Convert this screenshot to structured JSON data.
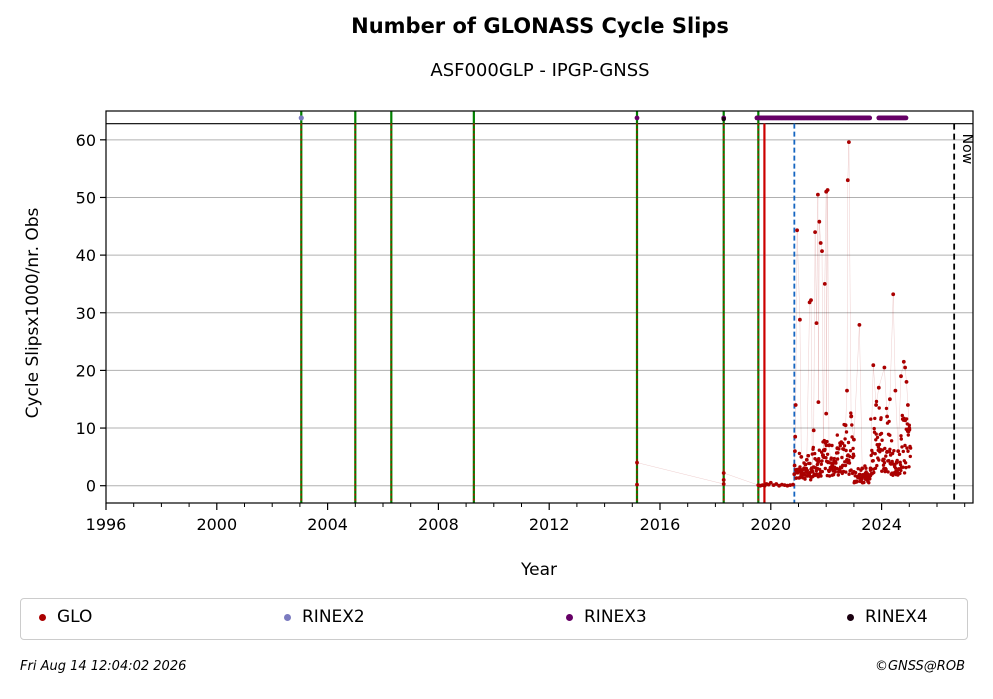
{
  "title": "Number of GLONASS Cycle Slips",
  "subtitle": "ASF000GLP - IPGP-GNSS",
  "footer": {
    "date": "Fri Aug 14 12:04:02 2026",
    "credit": "©GNSS@ROB"
  },
  "colors": {
    "glo": "#aa0000",
    "rinex2": "#7b7bc0",
    "rinex3": "#660066",
    "rinex4": "#1a0010",
    "green_line": "#008000",
    "red_line": "#cc0000",
    "blue_line": "#1565c0",
    "grid": "#b0b0b0"
  },
  "legend": [
    {
      "label": "GLO",
      "color": "#aa0000"
    },
    {
      "label": "RINEX2",
      "color": "#7b7bc0"
    },
    {
      "label": "RINEX3",
      "color": "#660066"
    },
    {
      "label": "RINEX4",
      "color": "#1a0010"
    }
  ],
  "chart_data": {
    "type": "scatter",
    "title": "Number of GLONASS Cycle Slips",
    "subtitle": "ASF000GLP - IPGP-GNSS",
    "xlabel": "Year",
    "ylabel": "Cycle Slipsx1000/nr. Obs",
    "xlim": [
      1996,
      2027.3
    ],
    "ylim": [
      -3,
      65
    ],
    "xticks": [
      1996,
      2000,
      2004,
      2008,
      2012,
      2016,
      2020,
      2024
    ],
    "yticks": [
      0,
      10,
      20,
      30,
      40,
      50,
      60
    ],
    "grid": "horizontal",
    "legend_position": "bottom",
    "now_label": "Now",
    "now_x": 2026.62,
    "top_line_y": 62.8,
    "green_lines": [
      2003.05,
      2005.0,
      2006.3,
      2009.28,
      2015.17,
      2018.3,
      2019.55
    ],
    "red_lines": [
      2003.05,
      2005.0,
      2006.3,
      2009.28,
      2015.17,
      2018.3,
      2019.55,
      2019.77
    ],
    "blue_lines": [
      2020.85
    ],
    "rinex2_points": [
      [
        2003.05,
        63.8
      ]
    ],
    "rinex3_points": [
      [
        2015.17,
        63.8
      ],
      [
        2018.3,
        63.8
      ]
    ],
    "rinex3_range": [
      2019.5,
      2022.8
    ],
    "rinex3_segments": [
      [
        2022.8,
        2023.6
      ],
      [
        2023.9,
        2024.9
      ]
    ],
    "rinex4_points": [
      [
        2018.3,
        63.6
      ]
    ],
    "series": [
      {
        "name": "GLO",
        "values": [
          [
            2015.17,
            0.2
          ],
          [
            2015.17,
            4.0
          ],
          [
            2018.3,
            0.3
          ],
          [
            2018.3,
            1.0
          ],
          [
            2018.3,
            2.2
          ],
          [
            2019.55,
            0.1
          ],
          [
            2019.62,
            0.0
          ],
          [
            2019.7,
            0.1
          ],
          [
            2019.78,
            0.0
          ],
          [
            2019.85,
            0.3
          ],
          [
            2019.92,
            0.2
          ],
          [
            2020.0,
            0.5
          ],
          [
            2020.1,
            0.1
          ],
          [
            2020.2,
            0.3
          ],
          [
            2020.3,
            0.0
          ],
          [
            2020.4,
            0.2
          ],
          [
            2020.5,
            0.1
          ],
          [
            2020.6,
            0.0
          ],
          [
            2020.7,
            0.1
          ],
          [
            2020.8,
            0.2
          ],
          [
            2020.85,
            2.0
          ],
          [
            2020.86,
            3.5
          ],
          [
            2020.87,
            6.0
          ],
          [
            2020.88,
            8.5
          ],
          [
            2020.9,
            14.0
          ],
          [
            2020.95,
            44.3
          ],
          [
            2021.05,
            28.8
          ],
          [
            2021.1,
            5.0
          ],
          [
            2021.2,
            3.0
          ],
          [
            2021.3,
            4.5
          ],
          [
            2021.4,
            31.8
          ],
          [
            2021.45,
            32.2
          ],
          [
            2021.5,
            2.5
          ],
          [
            2021.55,
            9.6
          ],
          [
            2021.6,
            44.0
          ],
          [
            2021.65,
            28.2
          ],
          [
            2021.7,
            50.5
          ],
          [
            2021.72,
            14.5
          ],
          [
            2021.75,
            45.8
          ],
          [
            2021.8,
            42.1
          ],
          [
            2021.85,
            40.7
          ],
          [
            2021.9,
            5.0
          ],
          [
            2021.95,
            35.0
          ],
          [
            2022.0,
            51.0
          ],
          [
            2022.05,
            51.3
          ],
          [
            2022.0,
            12.5
          ],
          [
            2022.1,
            7.0
          ],
          [
            2022.2,
            3.0
          ],
          [
            2022.3,
            4.0
          ],
          [
            2022.4,
            6.5
          ],
          [
            2022.5,
            2.5
          ],
          [
            2022.6,
            3.5
          ],
          [
            2022.7,
            10.5
          ],
          [
            2022.75,
            16.5
          ],
          [
            2022.78,
            53.0
          ],
          [
            2022.82,
            59.6
          ],
          [
            2022.9,
            12.0
          ],
          [
            2023.0,
            8.0
          ],
          [
            2023.2,
            27.9
          ],
          [
            2023.3,
            3.0
          ],
          [
            2023.5,
            2.0
          ],
          [
            2023.6,
            3.0
          ],
          [
            2023.7,
            20.9
          ],
          [
            2023.8,
            14.0
          ],
          [
            2023.9,
            17.0
          ],
          [
            2024.1,
            20.5
          ],
          [
            2024.2,
            12.0
          ],
          [
            2024.3,
            15.0
          ],
          [
            2024.42,
            33.2
          ],
          [
            2024.5,
            16.5
          ],
          [
            2024.6,
            6.0
          ],
          [
            2024.7,
            19.0
          ],
          [
            2024.8,
            21.5
          ],
          [
            2024.85,
            20.5
          ],
          [
            2024.9,
            18.0
          ],
          [
            2024.95,
            14.0
          ],
          [
            2025.0,
            10.0
          ]
        ]
      }
    ],
    "glo_cluster_ranges": [
      {
        "from": 2020.9,
        "to": 2021.5,
        "y_low": 1.0,
        "y_high": 6.0
      },
      {
        "from": 2021.5,
        "to": 2022.6,
        "y_low": 1.5,
        "y_high": 10.0
      },
      {
        "from": 2022.6,
        "to": 2023.0,
        "y_low": 2.0,
        "y_high": 14.0
      },
      {
        "from": 2023.0,
        "to": 2023.6,
        "y_low": 0.5,
        "y_high": 4.0
      },
      {
        "from": 2023.6,
        "to": 2024.3,
        "y_low": 2.0,
        "y_high": 16.0
      },
      {
        "from": 2024.3,
        "to": 2024.7,
        "y_low": 1.5,
        "y_high": 8.0
      },
      {
        "from": 2024.7,
        "to": 2025.05,
        "y_low": 2.0,
        "y_high": 17.0
      }
    ]
  }
}
